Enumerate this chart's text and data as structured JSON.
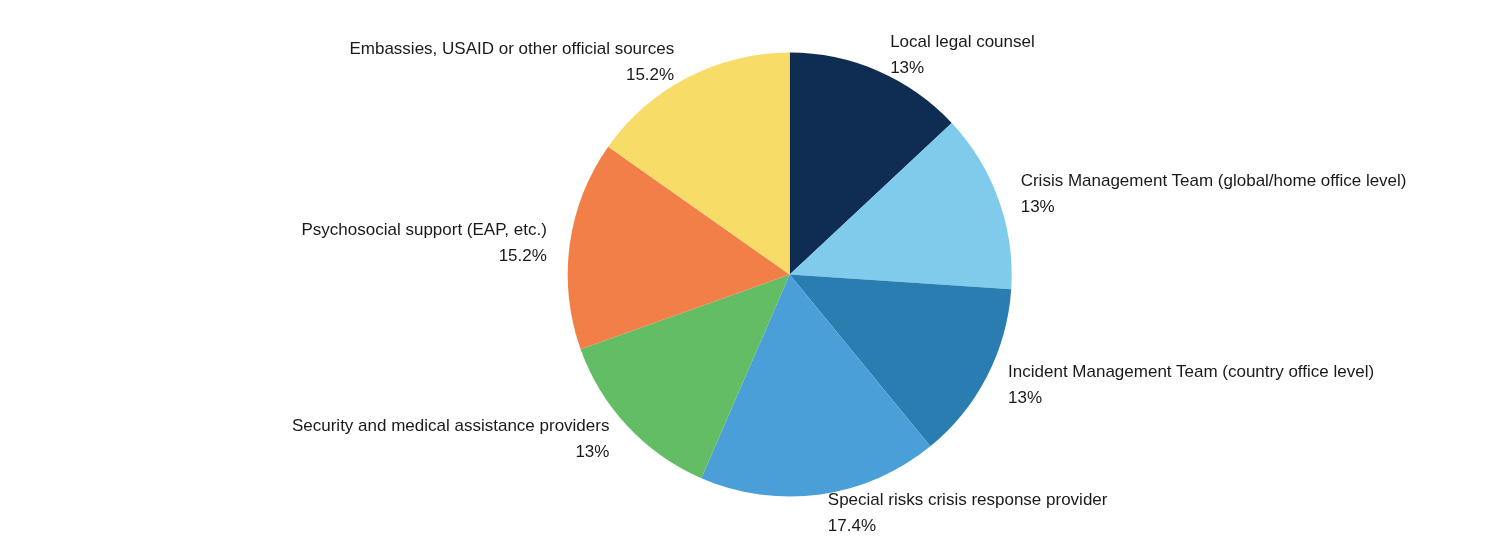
{
  "chart_data": {
    "type": "pie",
    "categories": [
      "Local legal counsel",
      "Crisis Management Team (global/home office level)",
      "Incident Management Team (country office level)",
      "Special risks crisis response provider",
      "Security and medical assistance providers",
      "Psychosocial support (EAP, etc.)",
      "Embassies, USAID or other official sources"
    ],
    "values": [
      13,
      13,
      13,
      17.4,
      13,
      15.2,
      15.2
    ],
    "value_labels": [
      "13%",
      "13%",
      "13%",
      "17.4%",
      "13%",
      "15.2%",
      "15.2%"
    ],
    "colors": [
      "#0f2d52",
      "#7ecbec",
      "#2a7db0",
      "#4a9fd8",
      "#62bd65",
      "#f37f48",
      "#f8dc68"
    ],
    "legend": false
  }
}
